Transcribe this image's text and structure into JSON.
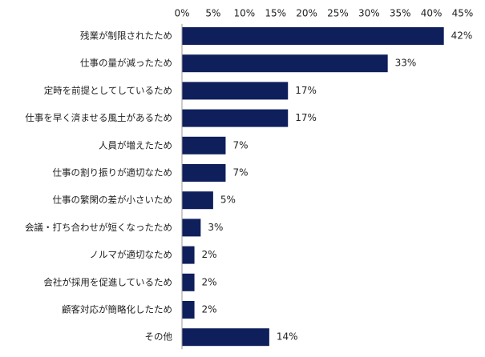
{
  "chart_data": {
    "type": "bar",
    "orientation": "horizontal",
    "categories": [
      "残業が制限されたため",
      "仕事の量が減ったため",
      "定時を前提としてしているため",
      "仕事を早く済ませる風土があるため",
      "人員が増えたため",
      "仕事の割り振りが適切なため",
      "仕事の繁閑の差が小さいため",
      "会議・打ち合わせが短くなったため",
      "ノルマが適切なため",
      "会社が採用を促進しているため",
      "顧客対応が簡略化したため",
      "その他"
    ],
    "values": [
      42,
      33,
      17,
      17,
      7,
      7,
      5,
      3,
      2,
      2,
      2,
      14
    ],
    "value_labels": [
      "42%",
      "33%",
      "17%",
      "17%",
      "7%",
      "7%",
      "5%",
      "3%",
      "2%",
      "2%",
      "2%",
      "14%"
    ],
    "xlim": [
      0,
      45
    ],
    "x_ticks": [
      0,
      5,
      10,
      15,
      20,
      25,
      30,
      35,
      40,
      45
    ],
    "x_tick_labels": [
      "0%",
      "5%",
      "10%",
      "15%",
      "20%",
      "25%",
      "30%",
      "35%",
      "40%",
      "45%"
    ],
    "axis_position": "top",
    "grid": false,
    "legend": "none",
    "bar_color": "#0f1f5c",
    "title": "",
    "xlabel": "",
    "ylabel": ""
  }
}
